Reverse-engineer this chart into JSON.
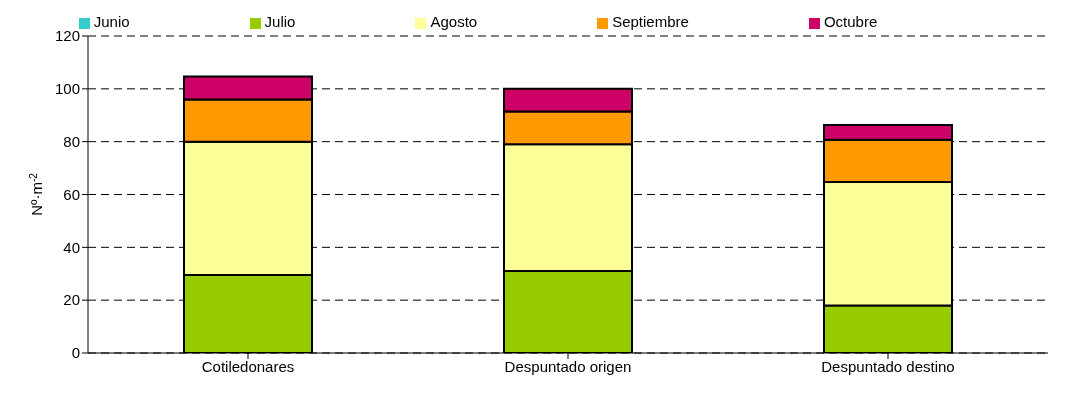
{
  "chart_data": {
    "type": "bar",
    "stacked": true,
    "ylabel": "Nº·m$^{-2}$",
    "categories": [
      "Cotiledonares",
      "Despuntado origen",
      "Despuntado destino"
    ],
    "series": [
      {
        "name": "Junio",
        "color": "#33cccc",
        "values": [
          0,
          0,
          0
        ]
      },
      {
        "name": "Julio",
        "color": "#99cc00",
        "values": [
          29.5,
          31,
          18
        ]
      },
      {
        "name": "Agosto",
        "color": "#ffff99",
        "values": [
          50.5,
          48,
          46.7
        ]
      },
      {
        "name": "Septiembre",
        "color": "#ff9900",
        "values": [
          16,
          12.4,
          16
        ]
      },
      {
        "name": "Octubre",
        "color": "#cc0066",
        "values": [
          8.7,
          8.6,
          5.6
        ]
      }
    ],
    "ylim": [
      0,
      120
    ],
    "yticks": [
      0,
      20,
      40,
      60,
      80,
      100,
      120
    ],
    "grid": "y",
    "legend": "top"
  }
}
